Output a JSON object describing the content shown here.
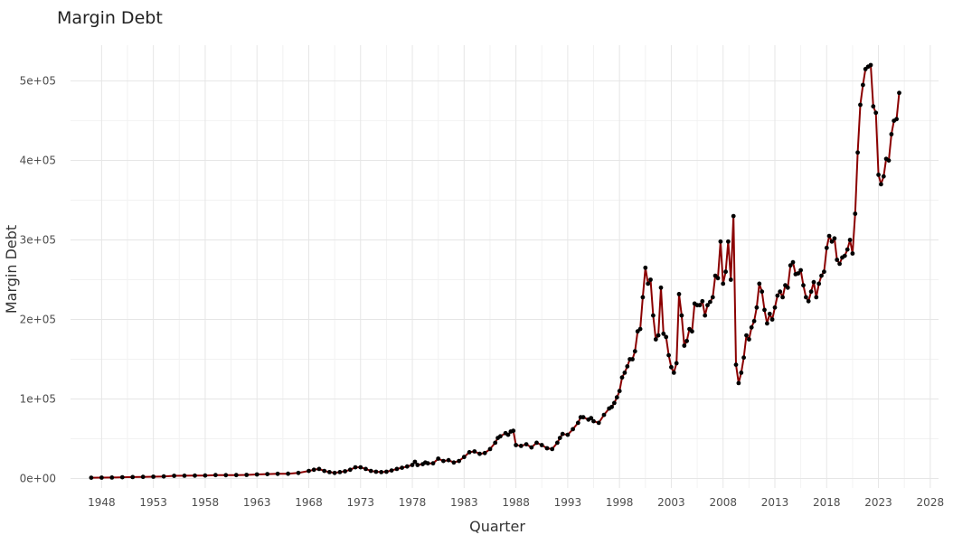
{
  "chart_data": {
    "type": "line",
    "title": "Margin Debt",
    "xlabel": "Quarter",
    "ylabel": "Margin Debt",
    "xlim": [
      1945.0,
      2028.8
    ],
    "ylim": [
      -12000,
      545000
    ],
    "x_ticks": [
      1948,
      1953,
      1958,
      1963,
      1968,
      1973,
      1978,
      1983,
      1988,
      1993,
      1998,
      2003,
      2008,
      2013,
      2018,
      2023,
      2028
    ],
    "y_ticks": [
      0,
      100000,
      200000,
      300000,
      400000,
      500000
    ],
    "y_tick_labels": [
      "0e+00",
      "1e+05",
      "2e+05",
      "3e+05",
      "4e+05",
      "5e+05"
    ],
    "grid": true,
    "legend": "none",
    "line_color": "#8b0000",
    "point_color": "#000000",
    "series": [
      {
        "values": [
          [
            1947.0,
            1000
          ],
          [
            1948.0,
            1100
          ],
          [
            1949.0,
            1200
          ],
          [
            1950.0,
            1500
          ],
          [
            1951.0,
            1800
          ],
          [
            1952.0,
            2000
          ],
          [
            1953.0,
            2200
          ],
          [
            1954.0,
            2600
          ],
          [
            1955.0,
            3300
          ],
          [
            1956.0,
            3500
          ],
          [
            1957.0,
            3600
          ],
          [
            1958.0,
            3700
          ],
          [
            1959.0,
            4200
          ],
          [
            1960.0,
            4100
          ],
          [
            1961.0,
            4300
          ],
          [
            1962.0,
            4500
          ],
          [
            1963.0,
            5000
          ],
          [
            1964.0,
            5500
          ],
          [
            1965.0,
            5800
          ],
          [
            1966.0,
            6000
          ],
          [
            1967.0,
            7000
          ],
          [
            1968.0,
            9500
          ],
          [
            1968.5,
            11000
          ],
          [
            1969.0,
            12000
          ],
          [
            1969.5,
            9500
          ],
          [
            1970.0,
            8000
          ],
          [
            1970.5,
            7000
          ],
          [
            1971.0,
            8000
          ],
          [
            1971.5,
            9000
          ],
          [
            1972.0,
            11000
          ],
          [
            1972.5,
            14000
          ],
          [
            1973.0,
            14000
          ],
          [
            1973.5,
            12000
          ],
          [
            1974.0,
            9500
          ],
          [
            1974.5,
            8500
          ],
          [
            1975.0,
            8000
          ],
          [
            1975.5,
            8500
          ],
          [
            1976.0,
            10000
          ],
          [
            1976.5,
            12000
          ],
          [
            1977.0,
            13500
          ],
          [
            1977.5,
            15000
          ],
          [
            1978.0,
            17000
          ],
          [
            1978.25,
            21000
          ],
          [
            1978.5,
            17000
          ],
          [
            1979.0,
            18000
          ],
          [
            1979.25,
            20000
          ],
          [
            1979.5,
            19000
          ],
          [
            1980.0,
            19000
          ],
          [
            1980.5,
            25000
          ],
          [
            1981.0,
            22000
          ],
          [
            1981.5,
            23000
          ],
          [
            1982.0,
            20000
          ],
          [
            1982.5,
            22000
          ],
          [
            1983.0,
            27000
          ],
          [
            1983.5,
            33000
          ],
          [
            1984.0,
            34000
          ],
          [
            1984.5,
            31000
          ],
          [
            1985.0,
            32000
          ],
          [
            1985.5,
            37000
          ],
          [
            1986.0,
            45000
          ],
          [
            1986.25,
            51000
          ],
          [
            1986.5,
            53000
          ],
          [
            1987.0,
            57000
          ],
          [
            1987.25,
            55000
          ],
          [
            1987.5,
            59000
          ],
          [
            1987.75,
            60000
          ],
          [
            1988.0,
            42000
          ],
          [
            1988.5,
            41000
          ],
          [
            1989.0,
            43000
          ],
          [
            1989.5,
            39000
          ],
          [
            1990.0,
            45000
          ],
          [
            1990.5,
            42000
          ],
          [
            1991.0,
            38000
          ],
          [
            1991.5,
            37000
          ],
          [
            1992.0,
            45000
          ],
          [
            1992.25,
            51000
          ],
          [
            1992.5,
            56000
          ],
          [
            1993.0,
            55000
          ],
          [
            1993.5,
            62000
          ],
          [
            1994.0,
            70000
          ],
          [
            1994.25,
            77000
          ],
          [
            1994.5,
            77000
          ],
          [
            1995.0,
            74000
          ],
          [
            1995.25,
            76000
          ],
          [
            1995.5,
            72000
          ],
          [
            1996.0,
            70000
          ],
          [
            1996.5,
            80000
          ],
          [
            1997.0,
            88000
          ],
          [
            1997.25,
            90000
          ],
          [
            1997.5,
            95000
          ],
          [
            1997.75,
            102000
          ],
          [
            1998.0,
            110000
          ],
          [
            1998.25,
            127000
          ],
          [
            1998.5,
            133000
          ],
          [
            1998.75,
            141000
          ],
          [
            1999.0,
            150000
          ],
          [
            1999.25,
            150000
          ],
          [
            1999.5,
            160000
          ],
          [
            1999.75,
            185000
          ],
          [
            2000.0,
            188000
          ],
          [
            2000.25,
            228000
          ],
          [
            2000.5,
            265000
          ],
          [
            2000.75,
            245000
          ],
          [
            2001.0,
            250000
          ],
          [
            2001.25,
            205000
          ],
          [
            2001.5,
            175000
          ],
          [
            2001.75,
            180000
          ],
          [
            2002.0,
            240000
          ],
          [
            2002.25,
            182000
          ],
          [
            2002.5,
            178000
          ],
          [
            2002.75,
            155000
          ],
          [
            2003.0,
            140000
          ],
          [
            2003.25,
            133000
          ],
          [
            2003.5,
            145000
          ],
          [
            2003.75,
            232000
          ],
          [
            2004.0,
            205000
          ],
          [
            2004.25,
            167000
          ],
          [
            2004.5,
            173000
          ],
          [
            2004.75,
            188000
          ],
          [
            2005.0,
            185000
          ],
          [
            2005.25,
            220000
          ],
          [
            2005.5,
            218000
          ],
          [
            2005.75,
            218000
          ],
          [
            2006.0,
            223000
          ],
          [
            2006.25,
            205000
          ],
          [
            2006.5,
            218000
          ],
          [
            2006.75,
            222000
          ],
          [
            2007.0,
            228000
          ],
          [
            2007.25,
            255000
          ],
          [
            2007.5,
            252000
          ],
          [
            2007.75,
            298000
          ],
          [
            2008.0,
            245000
          ],
          [
            2008.25,
            260000
          ],
          [
            2008.5,
            298000
          ],
          [
            2008.75,
            250000
          ],
          [
            2009.0,
            330000
          ],
          [
            2009.25,
            143000
          ],
          [
            2009.5,
            120000
          ],
          [
            2009.75,
            133000
          ],
          [
            2010.0,
            152000
          ],
          [
            2010.25,
            180000
          ],
          [
            2010.5,
            175000
          ],
          [
            2010.75,
            190000
          ],
          [
            2011.0,
            198000
          ],
          [
            2011.25,
            215000
          ],
          [
            2011.5,
            245000
          ],
          [
            2011.75,
            235000
          ],
          [
            2012.0,
            212000
          ],
          [
            2012.25,
            195000
          ],
          [
            2012.5,
            207000
          ],
          [
            2012.75,
            200000
          ],
          [
            2013.0,
            215000
          ],
          [
            2013.25,
            230000
          ],
          [
            2013.5,
            235000
          ],
          [
            2013.75,
            228000
          ],
          [
            2014.0,
            243000
          ],
          [
            2014.25,
            240000
          ],
          [
            2014.5,
            268000
          ],
          [
            2014.75,
            272000
          ],
          [
            2015.0,
            257000
          ],
          [
            2015.25,
            258000
          ],
          [
            2015.5,
            262000
          ],
          [
            2015.75,
            243000
          ],
          [
            2016.0,
            228000
          ],
          [
            2016.25,
            223000
          ],
          [
            2016.5,
            235000
          ],
          [
            2016.75,
            247000
          ],
          [
            2017.0,
            228000
          ],
          [
            2017.25,
            245000
          ],
          [
            2017.5,
            255000
          ],
          [
            2017.75,
            260000
          ],
          [
            2018.0,
            290000
          ],
          [
            2018.25,
            305000
          ],
          [
            2018.5,
            298000
          ],
          [
            2018.75,
            302000
          ],
          [
            2019.0,
            275000
          ],
          [
            2019.25,
            270000
          ],
          [
            2019.5,
            278000
          ],
          [
            2019.75,
            280000
          ],
          [
            2020.0,
            288000
          ],
          [
            2020.25,
            300000
          ],
          [
            2020.5,
            283000
          ],
          [
            2020.75,
            333000
          ],
          [
            2021.0,
            410000
          ],
          [
            2021.25,
            470000
          ],
          [
            2021.5,
            495000
          ],
          [
            2021.75,
            515000
          ],
          [
            2022.0,
            518000
          ],
          [
            2022.25,
            520000
          ],
          [
            2022.5,
            468000
          ],
          [
            2022.75,
            460000
          ],
          [
            2023.0,
            382000
          ],
          [
            2023.25,
            370000
          ],
          [
            2023.5,
            380000
          ],
          [
            2023.75,
            402000
          ],
          [
            2024.0,
            400000
          ],
          [
            2024.25,
            433000
          ],
          [
            2024.5,
            450000
          ],
          [
            2024.75,
            452000
          ],
          [
            2025.0,
            485000
          ]
        ]
      }
    ]
  }
}
